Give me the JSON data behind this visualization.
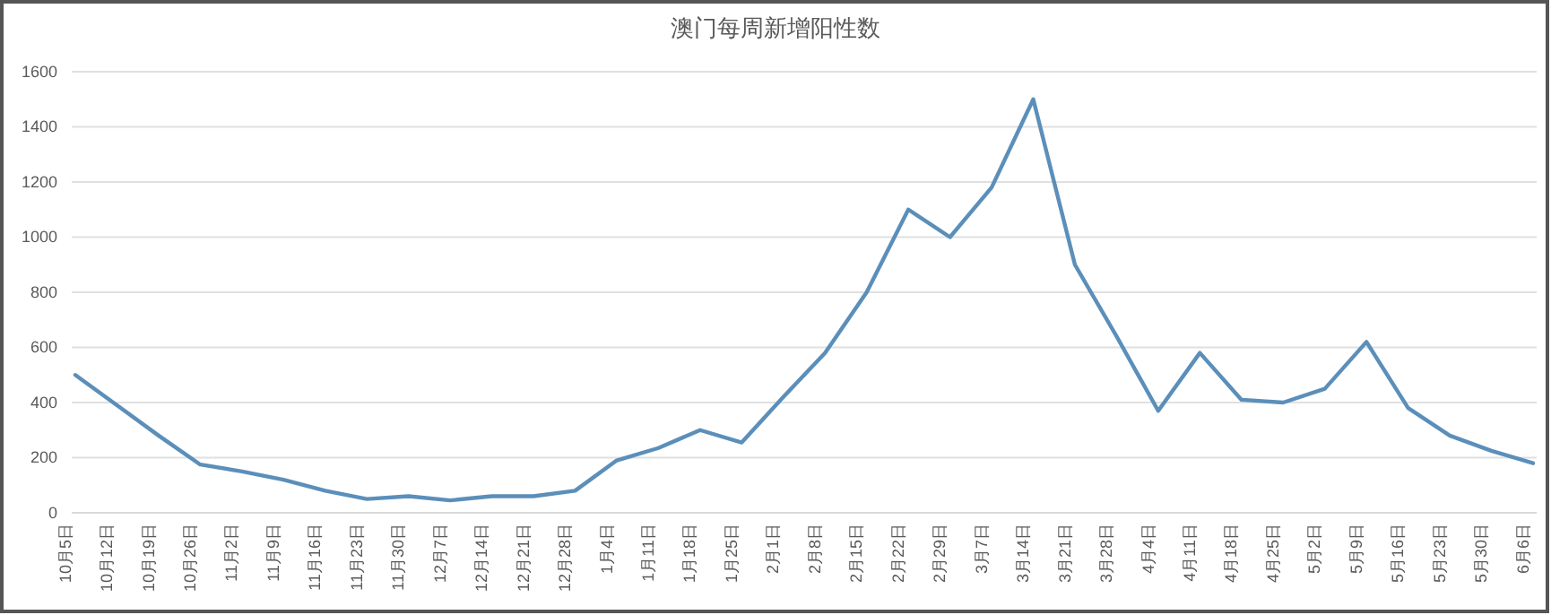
{
  "chart_data": {
    "type": "line",
    "title": "澳门每周新增阳性数",
    "categories": [
      "10月5日",
      "10月12日",
      "10月19日",
      "10月26日",
      "11月2日",
      "11月9日",
      "11月16日",
      "11月23日",
      "11月30日",
      "12月7日",
      "12月14日",
      "12月21日",
      "12月28日",
      "1月4日",
      "1月11日",
      "1月18日",
      "1月25日",
      "2月1日",
      "2月8日",
      "2月15日",
      "2月22日",
      "2月29日",
      "3月7日",
      "3月14日",
      "3月21日",
      "3月28日",
      "4月4日",
      "4月11日",
      "4月18日",
      "4月25日",
      "5月2日",
      "5月9日",
      "5月16日",
      "5月23日",
      "5月30日",
      "6月6日"
    ],
    "series": [
      {
        "color": "#5b8fba",
        "values": [
          500,
          390,
          280,
          175,
          150,
          120,
          80,
          50,
          60,
          45,
          60,
          60,
          80,
          190,
          235,
          300,
          255,
          420,
          580,
          800,
          1100,
          1000,
          1180,
          1500,
          900,
          640,
          370,
          580,
          410,
          400,
          450,
          620,
          380,
          280,
          225,
          180
        ]
      }
    ],
    "ylim": [
      0,
      1600
    ],
    "yticks": [
      0,
      200,
      400,
      600,
      800,
      1000,
      1200,
      1400,
      1600
    ],
    "grid": "y",
    "marker": "none",
    "line_style": "solid"
  }
}
